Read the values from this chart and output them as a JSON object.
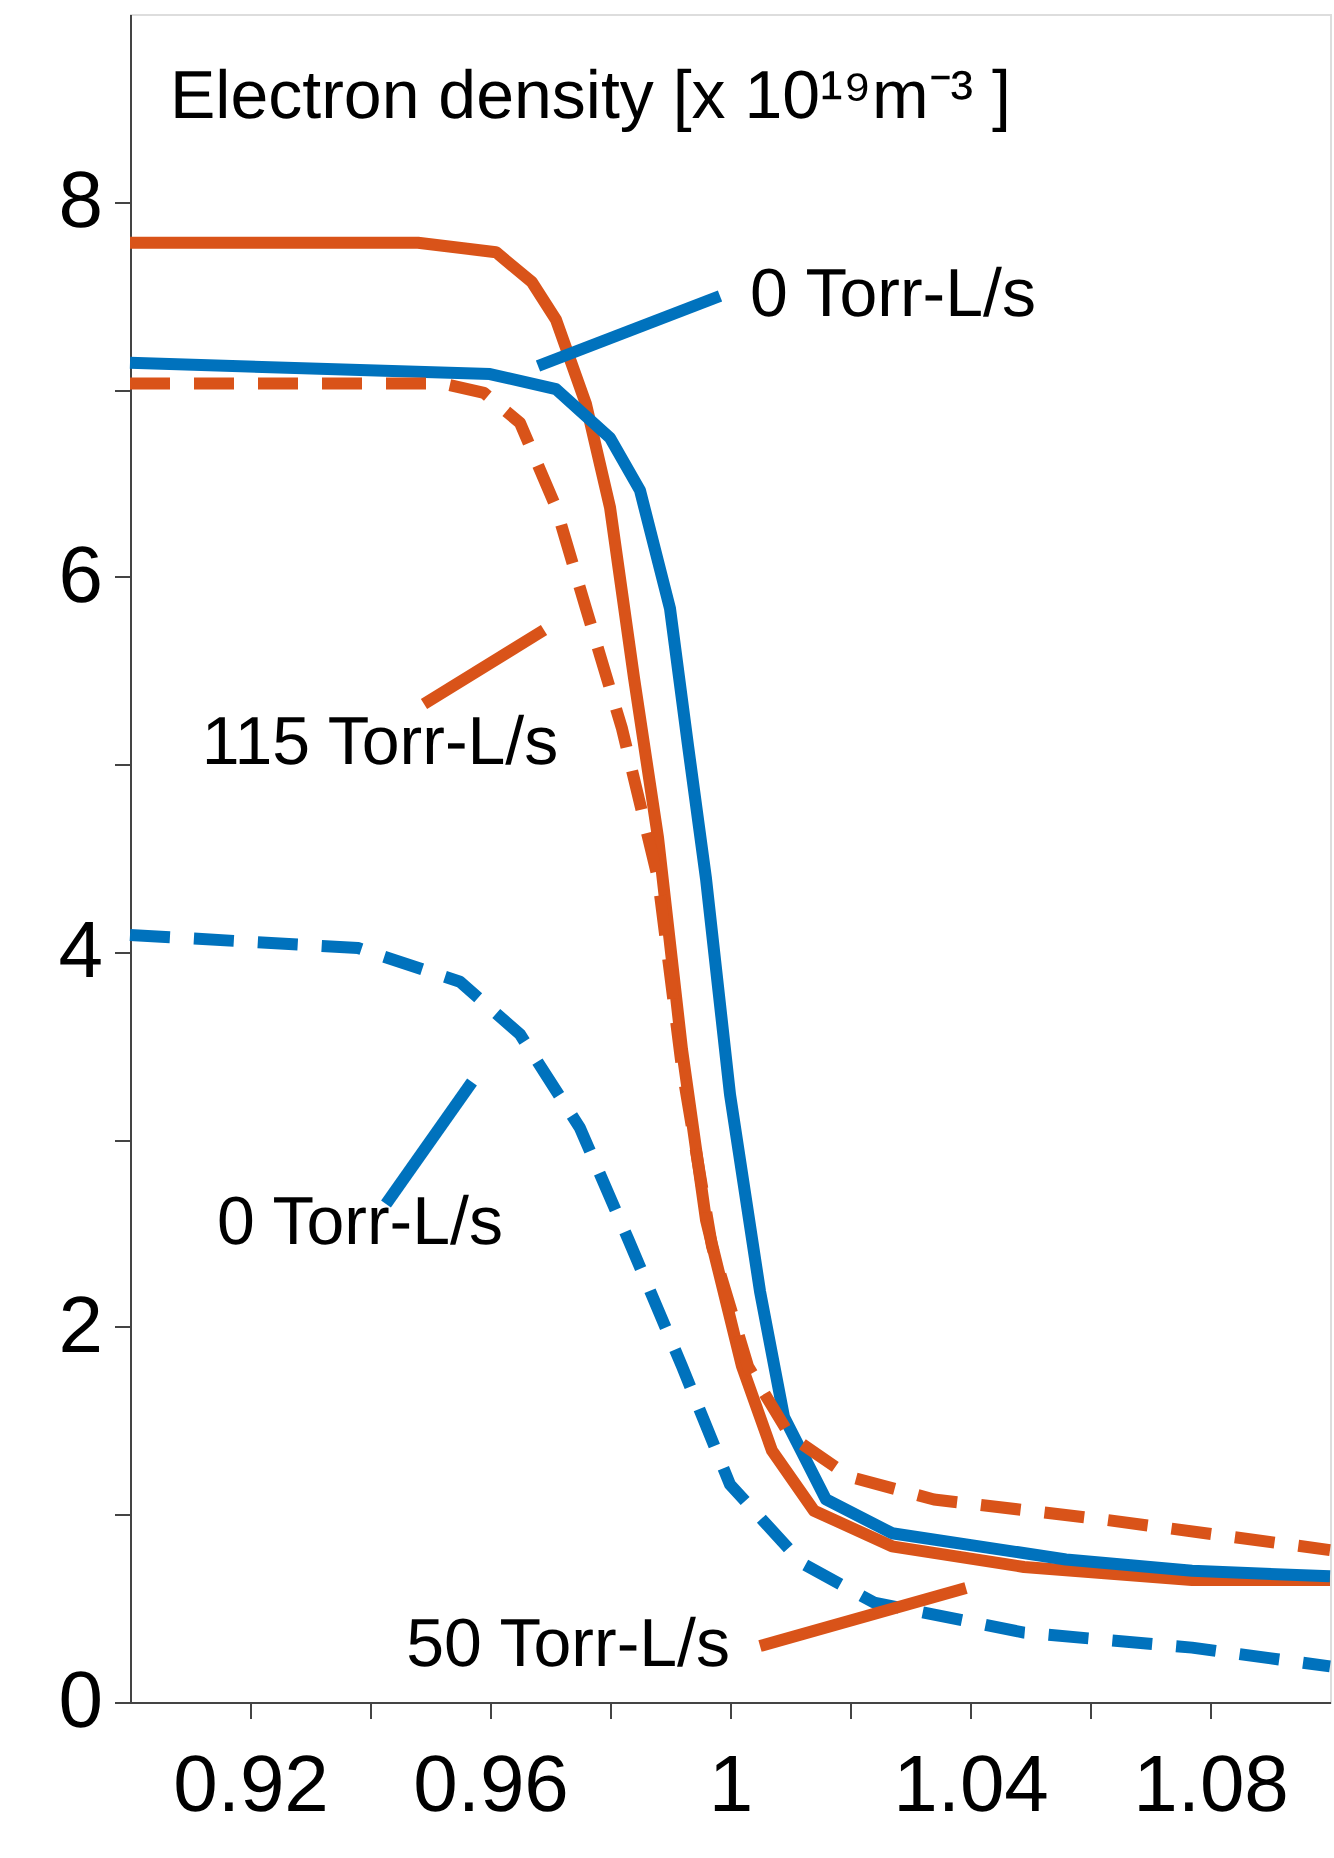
{
  "chart_data": {
    "type": "line",
    "title": "Electron density [x 10¹⁹m⁻³ ]",
    "xlim": [
      0.9,
      1.1
    ],
    "ylim": [
      0,
      9
    ],
    "xticks": [
      {
        "value": 0.92,
        "label": "0.92"
      },
      {
        "value": 0.94,
        "label": null
      },
      {
        "value": 0.96,
        "label": "0.96"
      },
      {
        "value": 0.98,
        "label": null
      },
      {
        "value": 1,
        "label": "1"
      },
      {
        "value": 1.02,
        "label": null
      },
      {
        "value": 1.04,
        "label": "1.04"
      },
      {
        "value": 1.06,
        "label": null
      },
      {
        "value": 1.08,
        "label": "1.08"
      }
    ],
    "yticks": [
      0,
      {
        "value": 1,
        "label": null
      },
      2,
      {
        "value": 3,
        "label": null
      },
      4,
      {
        "value": 5,
        "label": null
      },
      6,
      {
        "value": 7,
        "label": null
      },
      8
    ],
    "grid": false,
    "marker": "none",
    "series": [
      {
        "color": "#d95319",
        "line_style": "solid",
        "x": [
          0.9,
          0.948,
          0.961,
          0.967,
          0.971,
          0.976,
          0.98,
          0.984,
          0.988,
          0.992,
          0.996,
          1.002,
          1.007,
          1.014,
          1.027,
          1.049,
          1.077,
          1.1
        ],
        "values": [
          7.78,
          7.78,
          7.73,
          7.57,
          7.37,
          6.92,
          6.37,
          5.46,
          4.61,
          3.48,
          2.57,
          1.79,
          1.34,
          1.02,
          0.83,
          0.72,
          0.65,
          0.65
        ]
      },
      {
        "color": "#0072bd",
        "line_style": "solid",
        "x": [
          0.9,
          0.96,
          0.971,
          0.98,
          0.985,
          0.99,
          0.993,
          0.996,
          1.0,
          1.005,
          1.009,
          1.016,
          1.027,
          1.056,
          1.077,
          1.1
        ],
        "values": [
          7.14,
          7.08,
          7.0,
          6.74,
          6.46,
          5.83,
          5.1,
          4.39,
          3.24,
          2.19,
          1.52,
          1.08,
          0.9,
          0.76,
          0.7,
          0.67
        ]
      },
      {
        "color": "#d95319",
        "line_style": "dashed",
        "x": [
          0.9,
          0.952,
          0.959,
          0.965,
          0.971,
          0.976,
          0.982,
          0.988,
          0.992,
          0.997,
          1.003,
          1.01,
          1.02,
          1.034,
          1.063,
          1.1
        ],
        "values": [
          7.03,
          7.03,
          6.98,
          6.82,
          6.37,
          5.83,
          5.19,
          4.39,
          3.38,
          2.43,
          1.79,
          1.42,
          1.2,
          1.08,
          0.97,
          0.81
        ]
      },
      {
        "color": "#0072bd",
        "line_style": "dashed",
        "x": [
          0.9,
          0.938,
          0.955,
          0.965,
          0.975,
          0.983,
          0.992,
          1.0,
          1.012,
          1.024,
          1.049,
          1.077,
          1.1
        ],
        "values": [
          4.09,
          4.02,
          3.84,
          3.56,
          3.06,
          2.47,
          1.79,
          1.16,
          0.74,
          0.53,
          0.37,
          0.29,
          0.19
        ]
      }
    ],
    "annotations": [
      "0 Torr-L/s",
      "115 Torr-L/s",
      "0 Torr-L/s",
      "50 Torr-L/s"
    ]
  }
}
